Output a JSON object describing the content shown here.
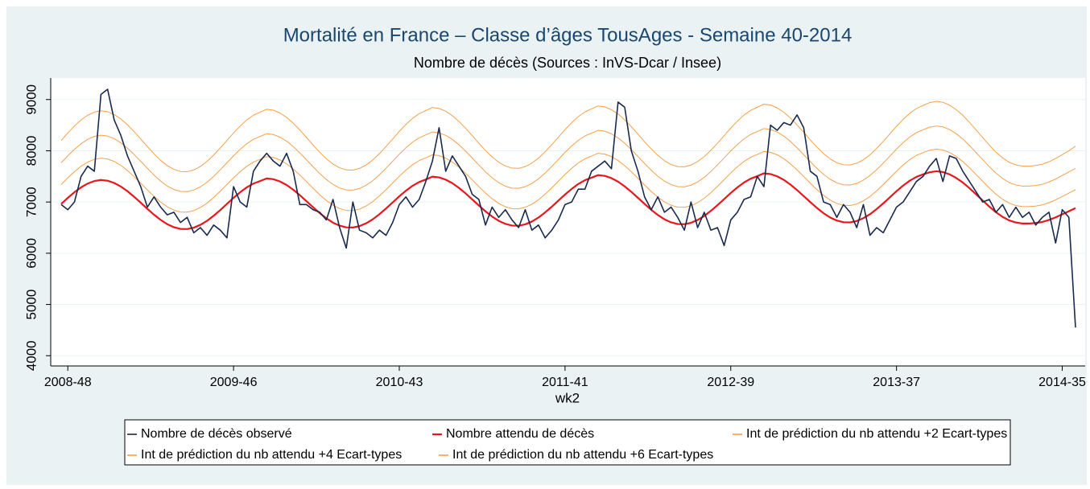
{
  "chart_data": {
    "type": "line",
    "title": "Mortalité en France – Classe d’âges  TousAges - Semaine 40-2014",
    "subtitle": "Nombre de décès (Sources : InVS-Dcar / Insee)",
    "x_label": "wk2",
    "categories": [
      null,
      "2008-48",
      null,
      null,
      null,
      null,
      null,
      null,
      null,
      null,
      null,
      null,
      null,
      null,
      null,
      null,
      null,
      null,
      null,
      null,
      null,
      null,
      null,
      null,
      null,
      null,
      "2009-46",
      null,
      null,
      null,
      null,
      null,
      null,
      null,
      null,
      null,
      null,
      null,
      null,
      null,
      null,
      null,
      null,
      null,
      null,
      null,
      null,
      null,
      null,
      null,
      null,
      "2010-43",
      null,
      null,
      null,
      null,
      null,
      null,
      null,
      null,
      null,
      null,
      null,
      null,
      null,
      null,
      null,
      null,
      null,
      null,
      null,
      null,
      null,
      null,
      null,
      null,
      "2011-41",
      null,
      null,
      null,
      null,
      null,
      null,
      null,
      null,
      null,
      null,
      null,
      null,
      null,
      null,
      null,
      null,
      null,
      null,
      null,
      null,
      null,
      null,
      null,
      null,
      "2012-39",
      null,
      null,
      null,
      null,
      null,
      null,
      null,
      null,
      null,
      null,
      null,
      null,
      null,
      null,
      null,
      null,
      null,
      null,
      null,
      null,
      null,
      null,
      null,
      null,
      "2013-37",
      null,
      null,
      null,
      null,
      null,
      null,
      null,
      null,
      null,
      null,
      null,
      null,
      null,
      null,
      null,
      null,
      null,
      null,
      null,
      null,
      null,
      null,
      null,
      null,
      "2014-35",
      null,
      null
    ],
    "series": [
      {
        "name": "Nombre de décès observé",
        "color": "#1a2a4f",
        "values": [
          6950,
          6850,
          7000,
          7500,
          7700,
          7600,
          9100,
          9200,
          8600,
          8300,
          7900,
          7600,
          7300,
          6900,
          7100,
          6900,
          6750,
          6800,
          6600,
          6700,
          6400,
          6500,
          6350,
          6550,
          6450,
          6300,
          7300,
          7000,
          6900,
          7600,
          7800,
          7950,
          7800,
          7700,
          7950,
          7600,
          6950,
          6950,
          6850,
          6800,
          6650,
          7050,
          6500,
          6100,
          7000,
          6450,
          6400,
          6300,
          6450,
          6350,
          6600,
          6950,
          7100,
          6900,
          7050,
          7400,
          7800,
          8450,
          7600,
          7900,
          7700,
          7500,
          7150,
          7050,
          6550,
          6900,
          6700,
          6850,
          6650,
          6500,
          6850,
          6450,
          6550,
          6300,
          6450,
          6650,
          6950,
          7000,
          7250,
          7250,
          7600,
          7700,
          7800,
          7650,
          8950,
          8850,
          8000,
          7600,
          7100,
          6850,
          7100,
          6800,
          6900,
          6700,
          6450,
          7000,
          6500,
          6800,
          6450,
          6500,
          6150,
          6650,
          6800,
          7050,
          7100,
          7500,
          7300,
          8500,
          8400,
          8550,
          8500,
          8700,
          8450,
          7600,
          7500,
          7000,
          6950,
          6700,
          6950,
          6800,
          6500,
          6950,
          6350,
          6500,
          6400,
          6650,
          6900,
          7000,
          7200,
          7400,
          7500,
          7700,
          7850,
          7400,
          7900,
          7850,
          7600,
          7400,
          7200,
          7000,
          7050,
          6800,
          6950,
          6700,
          6900,
          6700,
          6800,
          6550,
          6700,
          6800,
          6200,
          6850,
          6700,
          4550
        ]
      },
      {
        "name": "Nombre attendu de décès",
        "color": "#e8171b",
        "values": [
          6962,
          7081,
          7190,
          7286,
          7360,
          7409,
          7430,
          7415,
          7371,
          7302,
          7210,
          7103,
          6986,
          6867,
          6753,
          6651,
          6567,
          6508,
          6475,
          6472,
          6499,
          6554,
          6632,
          6732,
          6843,
          6962,
          7081,
          7190,
          7286,
          7360,
          7409,
          7460,
          7445,
          7401,
          7332,
          7240,
          7133,
          7016,
          6897,
          6783,
          6681,
          6597,
          6538,
          6505,
          6502,
          6529,
          6584,
          6662,
          6762,
          6873,
          6992,
          7111,
          7220,
          7316,
          7390,
          7439,
          7495,
          7480,
          7436,
          7367,
          7275,
          7168,
          7051,
          6932,
          6818,
          6716,
          6632,
          6573,
          6540,
          6537,
          6564,
          6619,
          6697,
          6797,
          6908,
          7027,
          7146,
          7255,
          7351,
          7425,
          7474,
          7525,
          7510,
          7466,
          7397,
          7305,
          7198,
          7081,
          6962,
          6848,
          6746,
          6662,
          6603,
          6570,
          6567,
          6594,
          6649,
          6727,
          6827,
          6938,
          7057,
          7176,
          7285,
          7381,
          7455,
          7504,
          7560,
          7545,
          7501,
          7432,
          7340,
          7233,
          7116,
          6997,
          6883,
          6781,
          6697,
          6638,
          6605,
          6602,
          6629,
          6684,
          6762,
          6862,
          6973,
          7092,
          7211,
          7320,
          7416,
          7490,
          7539,
          7580,
          7600,
          7585,
          7540,
          7470,
          7380,
          7270,
          7150,
          7030,
          6910,
          6800,
          6710,
          6640,
          6600,
          6580,
          6580,
          6590,
          6610,
          6650,
          6700,
          6760,
          6820,
          6880
        ]
      },
      {
        "name": "Int de prédiction du nb attendu +2 Ecart-types",
        "color": "#f5a04a",
        "values": [
          7341,
          7472,
          7592,
          7698,
          7779,
          7833,
          7856,
          7840,
          7791,
          7715,
          7614,
          7496,
          7368,
          7237,
          7111,
          6999,
          6907,
          6842,
          6805,
          6802,
          6832,
          6892,
          6978,
          7088,
          7210,
          7341,
          7472,
          7592,
          7698,
          7779,
          7833,
          7886,
          7870,
          7821,
          7745,
          7644,
          7526,
          7398,
          7267,
          7141,
          7029,
          6937,
          6872,
          6835,
          6832,
          6862,
          6922,
          7008,
          7118,
          7240,
          7371,
          7502,
          7622,
          7728,
          7809,
          7863,
          7921,
          7905,
          7856,
          7780,
          7679,
          7561,
          7433,
          7302,
          7176,
          7064,
          6972,
          6907,
          6870,
          6867,
          6897,
          6957,
          7043,
          7153,
          7275,
          7406,
          7537,
          7657,
          7763,
          7844,
          7898,
          7951,
          7935,
          7886,
          7810,
          7709,
          7591,
          7463,
          7332,
          7206,
          7094,
          7002,
          6937,
          6900,
          6897,
          6927,
          6987,
          7073,
          7183,
          7305,
          7436,
          7567,
          7687,
          7793,
          7874,
          7928,
          7986,
          7970,
          7921,
          7845,
          7744,
          7626,
          7498,
          7367,
          7241,
          7129,
          7037,
          6972,
          6935,
          6932,
          6962,
          7022,
          7108,
          7218,
          7340,
          7471,
          7602,
          7722,
          7828,
          7909,
          7963,
          8010,
          8032,
          8016,
          7966,
          7889,
          7790,
          7669,
          7537,
          7405,
          7273,
          7152,
          7053,
          6976,
          6932,
          6910,
          6910,
          6921,
          6943,
          6987,
          7042,
          7108,
          7174,
          7240
        ]
      },
      {
        "name": "Int de prédiction du nb attendu +4 Ecart-types",
        "color": "#f5a04a",
        "values": [
          7766,
          7903,
          8028,
          8138,
          8224,
          8280,
          8304,
          8287,
          8236,
          8157,
          8051,
          7928,
          7793,
          7657,
          7525,
          7408,
          7312,
          7244,
          7206,
          7202,
          7233,
          7297,
          7386,
          7501,
          7629,
          7766,
          7903,
          8028,
          8138,
          8224,
          8280,
          8334,
          8317,
          8266,
          8187,
          8081,
          7958,
          7823,
          7687,
          7555,
          7438,
          7342,
          7274,
          7236,
          7232,
          7263,
          7327,
          7416,
          7531,
          7659,
          7796,
          7933,
          8058,
          8168,
          8254,
          8310,
          8369,
          8352,
          8301,
          8222,
          8116,
          7993,
          7858,
          7722,
          7590,
          7473,
          7377,
          7309,
          7271,
          7267,
          7298,
          7362,
          7451,
          7566,
          7694,
          7831,
          7968,
          8093,
          8203,
          8289,
          8345,
          8399,
          8382,
          8331,
          8252,
          8146,
          8023,
          7888,
          7752,
          7620,
          7503,
          7407,
          7339,
          7301,
          7297,
          7328,
          7392,
          7481,
          7596,
          7724,
          7861,
          7998,
          8123,
          8233,
          8319,
          8375,
          8434,
          8417,
          8366,
          8287,
          8181,
          8058,
          7923,
          7787,
          7655,
          7538,
          7442,
          7374,
          7336,
          7332,
          7363,
          7427,
          7516,
          7631,
          7759,
          7896,
          8033,
          8158,
          8268,
          8354,
          8410,
          8460,
          8483,
          8466,
          8414,
          8334,
          8230,
          8104,
          7966,
          7828,
          7690,
          7563,
          7460,
          7379,
          7333,
          7310,
          7310,
          7322,
          7345,
          7391,
          7448,
          7517,
          7586,
          7655
        ]
      },
      {
        "name": "Int de prédiction du nb attendu +6 Ecart-types",
        "color": "#f5a04a",
        "values": [
          8200,
          8348,
          8483,
          8602,
          8694,
          8754,
          8780,
          8762,
          8707,
          8622,
          8508,
          8375,
          8230,
          8082,
          7941,
          7814,
          7710,
          7637,
          7596,
          7592,
          7626,
          7694,
          7791,
          7915,
          8053,
          8200,
          8348,
          8483,
          8602,
          8694,
          8754,
          8810,
          8792,
          8737,
          8652,
          8538,
          8405,
          8260,
          8112,
          7971,
          7844,
          7740,
          7667,
          7626,
          7622,
          7656,
          7724,
          7821,
          7945,
          8083,
          8230,
          8378,
          8513,
          8632,
          8724,
          8784,
          8845,
          8827,
          8772,
          8687,
          8573,
          8440,
          8295,
          8147,
          8006,
          7879,
          7775,
          7702,
          7661,
          7657,
          7691,
          7759,
          7856,
          7980,
          8118,
          8265,
          8413,
          8548,
          8667,
          8759,
          8819,
          8875,
          8857,
          8802,
          8717,
          8603,
          8470,
          8325,
          8177,
          8036,
          7909,
          7805,
          7732,
          7691,
          7687,
          7721,
          7789,
          7886,
          8010,
          8148,
          8295,
          8443,
          8578,
          8697,
          8789,
          8849,
          8910,
          8892,
          8837,
          8752,
          8638,
          8505,
          8360,
          8212,
          8071,
          7944,
          7840,
          7767,
          7726,
          7722,
          7756,
          7824,
          7921,
          8045,
          8183,
          8330,
          8478,
          8613,
          8732,
          8824,
          8884,
          8940,
          8965,
          8946,
          8890,
          8804,
          8692,
          8556,
          8407,
          8258,
          8109,
          7973,
          7861,
          7774,
          7725,
          7700,
          7700,
          7712,
          7737,
          7785,
          7849,
          7923,
          7998,
          8092
        ]
      }
    ],
    "ylim": [
      3800,
      9420
    ],
    "yticks": [
      4000,
      5000,
      6000,
      7000,
      8000,
      9000
    ],
    "grid": true,
    "legend": "bottom"
  }
}
